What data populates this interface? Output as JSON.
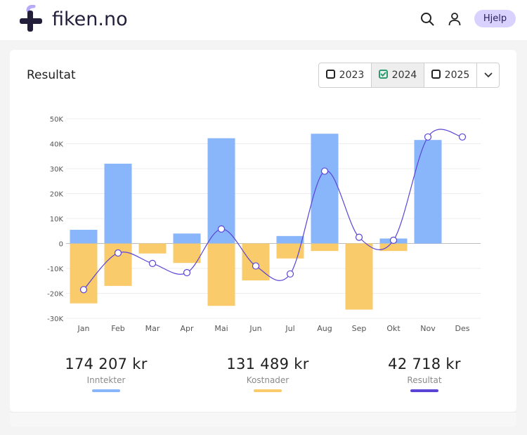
{
  "header": {
    "logo_text": "fiken.no",
    "help_label": "Hjelp"
  },
  "card": {
    "title": "Resultat",
    "years": [
      {
        "label": "2023",
        "checked": false
      },
      {
        "label": "2024",
        "checked": true
      },
      {
        "label": "2025",
        "checked": false
      }
    ]
  },
  "colors": {
    "income": "#89b6fb",
    "cost": "#f9cb6a",
    "result": "#5a44d8",
    "help_bg": "#d9d2ff",
    "checked": "#2e9a72"
  },
  "chart_data": {
    "type": "bar",
    "categories": [
      "Jan",
      "Feb",
      "Mar",
      "Apr",
      "Mai",
      "Jun",
      "Jul",
      "Aug",
      "Sep",
      "Okt",
      "Nov",
      "Des"
    ],
    "series": [
      {
        "name": "Inntekter",
        "type": "bar",
        "values": [
          5500,
          32000,
          0,
          4000,
          42200,
          0,
          3000,
          44000,
          0,
          2000,
          41500,
          0
        ]
      },
      {
        "name": "Kostnader",
        "type": "bar",
        "values": [
          -24000,
          -17000,
          -4000,
          -7800,
          -25000,
          -14800,
          -6000,
          -3000,
          -26500,
          -3000,
          0,
          0
        ]
      },
      {
        "name": "Resultat",
        "type": "line",
        "values": [
          -18500,
          -3800,
          -8000,
          -11700,
          5800,
          -9000,
          -12200,
          29000,
          2500,
          1300,
          42700,
          42700
        ]
      }
    ],
    "yticks": [
      "50K",
      "40K",
      "30K",
      "20K",
      "10K",
      "0",
      "-10K",
      "-20K",
      "-30K"
    ],
    "ylim": [
      -30000,
      50000
    ]
  },
  "summary": [
    {
      "value": "174 207 kr",
      "label": "Inntekter",
      "color": "#89b6fb"
    },
    {
      "value": "131 489 kr",
      "label": "Kostnader",
      "color": "#f9cb6a"
    },
    {
      "value": "42 718 kr",
      "label": "Resultat",
      "color": "#5a44d8"
    }
  ]
}
